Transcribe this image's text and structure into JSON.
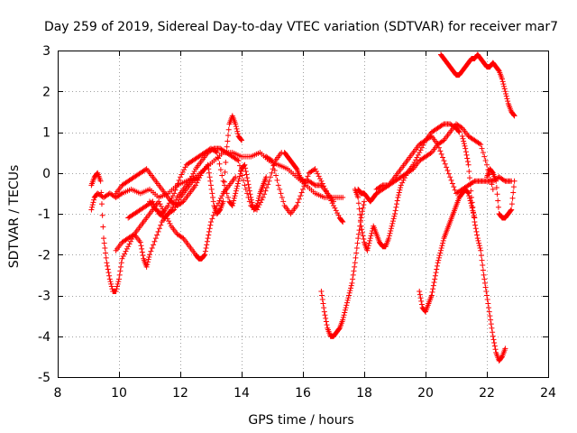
{
  "chart_data": {
    "type": "scatter",
    "title": "Day 259 of 2019, Sidereal Day-to-day VTEC variation (SDTVAR) for receiver mar7",
    "xlabel": "GPS time / hours",
    "ylabel": "SDTVAR / TECUs",
    "xlim": [
      8,
      24
    ],
    "ylim": [
      -5,
      3
    ],
    "xticks": [
      8,
      10,
      12,
      14,
      16,
      18,
      20,
      22,
      24
    ],
    "yticks": [
      -5,
      -4,
      -3,
      -2,
      -1,
      0,
      1,
      2,
      3
    ],
    "grid": true,
    "marker": "plus",
    "color": "#ff0000",
    "series": [
      {
        "name": "arc1",
        "x": [
          9.1,
          9.2,
          9.3,
          9.5,
          9.7,
          9.9,
          10.1,
          10.4,
          10.7,
          11.0,
          11.3,
          11.6,
          11.9,
          12.2,
          12.5,
          12.8,
          13.1,
          13.4,
          13.7,
          14.0,
          14.3,
          14.6,
          14.9,
          15.2,
          15.5,
          15.8,
          16.1,
          16.4,
          16.7,
          17.0,
          17.3
        ],
        "y": [
          -0.9,
          -0.6,
          -0.5,
          -0.6,
          -0.5,
          -0.6,
          -0.5,
          -0.4,
          -0.5,
          -0.4,
          -0.6,
          -0.5,
          -0.3,
          -0.2,
          -0.1,
          0.1,
          0.3,
          0.5,
          0.5,
          0.4,
          0.4,
          0.5,
          0.3,
          0.2,
          0.1,
          -0.1,
          -0.3,
          -0.5,
          -0.6,
          -0.6,
          -0.6
        ]
      },
      {
        "name": "arc2",
        "x": [
          9.1,
          9.2,
          9.3,
          9.4,
          9.5,
          9.6,
          9.7,
          9.8,
          9.9,
          10.0,
          10.1,
          10.3,
          10.5,
          10.7,
          10.8,
          10.9,
          11.0,
          11.2,
          11.4,
          11.6,
          11.8,
          12.0,
          12.2,
          12.4,
          12.6
        ],
        "y": [
          -0.3,
          -0.1,
          0.0,
          -0.2,
          -1.6,
          -2.2,
          -2.6,
          -2.9,
          -2.9,
          -2.6,
          -2.1,
          -1.8,
          -1.5,
          -1.7,
          -2.1,
          -2.3,
          -2.0,
          -1.6,
          -1.2,
          -1.0,
          -0.9,
          -0.6,
          -0.4,
          -0.2,
          -0.1
        ]
      },
      {
        "name": "arc3",
        "x": [
          9.9,
          10.1,
          10.3,
          10.5,
          10.7,
          10.9,
          11.1,
          11.3,
          11.5,
          11.7,
          11.9,
          12.1,
          12.3,
          12.5,
          12.6,
          12.7,
          12.8,
          12.9,
          13.0,
          13.2,
          13.4,
          13.6,
          13.8
        ],
        "y": [
          -1.9,
          -1.7,
          -1.6,
          -1.5,
          -1.3,
          -1.1,
          -0.9,
          -0.7,
          -1.0,
          -1.3,
          -1.5,
          -1.6,
          -1.8,
          -2.0,
          -2.1,
          -2.1,
          -2.0,
          -1.6,
          -1.2,
          -0.8,
          -0.5,
          -0.3,
          -0.1
        ]
      },
      {
        "name": "arc4",
        "x": [
          9.9,
          10.1,
          10.3,
          10.5,
          10.7,
          10.9,
          11.1,
          11.3,
          11.5,
          11.7,
          11.9,
          12.1,
          12.3,
          12.5,
          12.7,
          12.9,
          13.0,
          13.1,
          13.2,
          13.3,
          13.4,
          13.5,
          13.6,
          13.7,
          13.8,
          13.9,
          14.0
        ],
        "y": [
          -0.5,
          -0.3,
          -0.2,
          -0.1,
          0.0,
          0.1,
          -0.1,
          -0.3,
          -0.5,
          -0.7,
          -0.8,
          -0.7,
          -0.5,
          -0.3,
          0.0,
          0.2,
          -0.3,
          -0.8,
          -1.0,
          -0.9,
          -0.7,
          0.5,
          1.2,
          1.4,
          1.2,
          0.9,
          0.8
        ]
      },
      {
        "name": "arc5",
        "x": [
          10.3,
          10.5,
          10.7,
          10.9,
          11.1,
          11.3,
          11.5,
          11.7,
          11.9,
          12.1,
          12.3,
          12.5,
          12.7,
          12.9,
          13.1,
          13.3,
          13.5,
          13.7,
          13.9,
          14.1,
          14.3,
          14.5,
          14.7,
          14.9,
          15.1,
          15.3
        ],
        "y": [
          -1.1,
          -1.0,
          -0.9,
          -0.8,
          -0.7,
          -1.0,
          -1.1,
          -0.9,
          -0.6,
          -0.4,
          -0.2,
          0.1,
          0.3,
          0.5,
          0.6,
          0.6,
          0.5,
          0.4,
          0.3,
          -0.3,
          -0.8,
          -0.9,
          -0.6,
          -0.2,
          0.3,
          0.5
        ]
      },
      {
        "name": "arc6",
        "x": [
          11.0,
          11.2,
          11.4,
          11.6,
          11.8,
          12.0,
          12.2,
          12.4,
          12.6,
          12.8,
          13.0,
          13.2,
          13.4,
          13.6,
          13.7,
          13.8,
          13.9,
          14.0,
          14.1,
          14.2,
          14.3,
          14.4,
          14.5,
          14.6,
          14.7,
          14.8
        ],
        "y": [
          -0.7,
          -0.9,
          -1.0,
          -0.8,
          -0.5,
          -0.1,
          0.2,
          0.3,
          0.4,
          0.5,
          0.6,
          0.5,
          -0.2,
          -0.7,
          -0.8,
          -0.5,
          -0.2,
          0.1,
          0.2,
          -0.2,
          -0.6,
          -0.9,
          -0.8,
          -0.5,
          -0.3,
          -0.1
        ]
      },
      {
        "name": "arc7",
        "x": [
          14.8,
          15.0,
          15.2,
          15.4,
          15.6,
          15.8,
          16.0,
          16.2,
          16.4,
          16.6,
          16.8,
          17.0,
          17.2,
          17.3
        ],
        "y": [
          0.4,
          0.3,
          -0.3,
          -0.8,
          -1.0,
          -0.8,
          -0.4,
          0.0,
          0.1,
          -0.2,
          -0.5,
          -0.8,
          -1.1,
          -1.2
        ]
      },
      {
        "name": "arc8",
        "x": [
          15.4,
          15.5,
          15.6,
          15.7,
          15.8,
          15.9,
          16.0,
          16.2,
          16.4,
          16.6,
          16.8,
          17.0
        ],
        "y": [
          0.5,
          0.4,
          0.3,
          0.2,
          0.1,
          -0.1,
          -0.2,
          -0.2,
          -0.3,
          -0.3,
          -0.5,
          -0.7
        ]
      },
      {
        "name": "arc9",
        "x": [
          16.6,
          16.7,
          16.8,
          16.9,
          17.0,
          17.1,
          17.2,
          17.3,
          17.4,
          17.5,
          17.6,
          17.7,
          17.8,
          17.9,
          18.0
        ],
        "y": [
          -2.9,
          -3.4,
          -3.8,
          -4.0,
          -4.0,
          -3.9,
          -3.8,
          -3.6,
          -3.3,
          -3.0,
          -2.7,
          -2.2,
          -1.6,
          -1.1,
          -0.7
        ]
      },
      {
        "name": "arc10",
        "x": [
          17.7,
          17.8,
          17.9,
          18.0,
          18.1,
          18.2,
          18.3,
          18.4,
          18.5,
          18.6,
          18.7,
          18.8,
          18.9,
          19.0,
          19.1,
          19.2,
          19.4,
          19.6,
          19.8,
          20.0,
          20.2,
          20.4,
          20.6,
          20.8,
          21.0,
          21.1
        ],
        "y": [
          -0.4,
          -0.6,
          -1.3,
          -1.7,
          -1.9,
          -1.6,
          -1.3,
          -1.5,
          -1.7,
          -1.8,
          -1.8,
          -1.6,
          -1.3,
          -1.0,
          -0.6,
          -0.3,
          0.0,
          0.2,
          0.5,
          0.8,
          1.0,
          1.1,
          1.2,
          1.2,
          1.1,
          1.0
        ]
      },
      {
        "name": "arc11",
        "x": [
          17.8,
          17.9,
          18.0,
          18.1,
          18.2,
          18.3,
          18.4,
          18.6,
          18.8,
          19.0,
          19.2,
          19.4,
          19.6,
          19.8,
          20.0,
          20.2,
          20.4,
          20.6,
          20.8,
          21.0,
          21.2,
          21.4,
          21.6,
          21.8,
          22.0,
          22.2,
          22.4,
          22.6,
          22.8
        ],
        "y": [
          -0.4,
          -0.5,
          -0.5,
          -0.6,
          -0.7,
          -0.6,
          -0.5,
          -0.4,
          -0.3,
          -0.1,
          0.1,
          0.3,
          0.5,
          0.7,
          0.8,
          0.9,
          0.7,
          0.3,
          -0.1,
          -0.5,
          -0.4,
          -0.3,
          -0.2,
          -0.2,
          -0.2,
          -0.2,
          -0.1,
          -0.2,
          -0.2
        ]
      },
      {
        "name": "arc12",
        "x": [
          18.4,
          18.6,
          18.8,
          19.0,
          19.2,
          19.4,
          19.6,
          19.8,
          20.0,
          20.2,
          20.4,
          20.6,
          20.8,
          21.0,
          21.2,
          21.4,
          21.6,
          21.8,
          22.0,
          22.2
        ],
        "y": [
          -0.4,
          -0.3,
          -0.3,
          -0.2,
          -0.1,
          0.0,
          0.1,
          0.3,
          0.4,
          0.5,
          0.7,
          0.8,
          1.0,
          1.2,
          1.1,
          0.9,
          0.8,
          0.7,
          0.2,
          -0.4
        ]
      },
      {
        "name": "arc13",
        "x": [
          19.8,
          19.9,
          20.0,
          20.1,
          20.2,
          20.3,
          20.4,
          20.5,
          20.6,
          20.7,
          20.8,
          20.9,
          21.0,
          21.1,
          21.2,
          21.3,
          21.4,
          21.5,
          21.6
        ],
        "y": [
          -2.9,
          -3.3,
          -3.4,
          -3.2,
          -3.0,
          -2.6,
          -2.2,
          -1.9,
          -1.6,
          -1.4,
          -1.2,
          -1.0,
          -0.8,
          -0.6,
          -0.5,
          -0.4,
          -0.5,
          -0.8,
          -1.1
        ]
      },
      {
        "name": "arc14",
        "x": [
          21.2,
          21.3,
          21.4,
          21.5,
          21.6,
          21.7,
          21.8,
          21.9,
          22.0,
          22.1,
          22.2,
          22.3,
          22.4,
          22.5,
          22.6
        ],
        "y": [
          0.9,
          0.6,
          0.2,
          -0.6,
          -1.2,
          -1.6,
          -1.9,
          -2.5,
          -3.0,
          -3.5,
          -4.0,
          -4.4,
          -4.6,
          -4.5,
          -4.3
        ]
      },
      {
        "name": "arc15",
        "x": [
          22.0,
          22.1,
          22.2,
          22.3,
          22.4,
          22.5,
          22.6,
          22.7,
          22.8,
          22.9
        ],
        "y": [
          -0.1,
          0.1,
          0.0,
          -0.2,
          -1.0,
          -1.1,
          -1.1,
          -1.0,
          -0.9,
          -0.2
        ]
      },
      {
        "name": "arc16",
        "x": [
          20.5,
          20.6,
          20.7,
          20.8,
          20.9,
          21.0,
          21.1,
          21.2,
          21.3,
          21.4,
          21.5,
          21.6,
          21.7,
          21.8,
          21.9,
          22.0,
          22.1,
          22.2,
          22.3,
          22.4,
          22.5,
          22.6,
          22.7,
          22.8,
          22.9
        ],
        "y": [
          2.9,
          2.8,
          2.7,
          2.6,
          2.5,
          2.4,
          2.4,
          2.5,
          2.6,
          2.7,
          2.8,
          2.8,
          2.9,
          2.8,
          2.7,
          2.6,
          2.6,
          2.7,
          2.6,
          2.5,
          2.3,
          2.0,
          1.7,
          1.5,
          1.4
        ]
      }
    ]
  }
}
